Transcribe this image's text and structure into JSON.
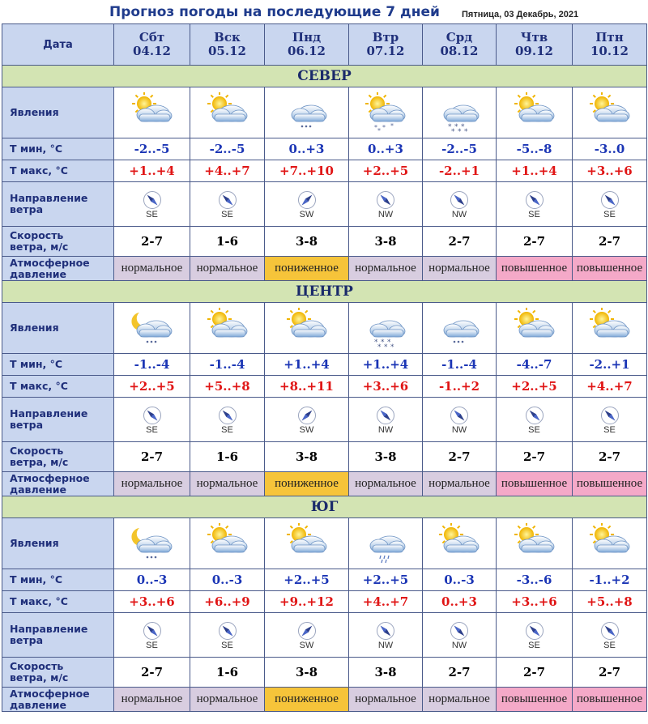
{
  "header": {
    "title": "Прогноз погоды на последующие 7 дней",
    "date": "Пятница, 03 Декабрь, 2021"
  },
  "labels": {
    "date": "Дата",
    "phenomena": "Явления",
    "tmin": "Т мин, °С",
    "tmax": "Т макс, °С",
    "wind_dir_1": "Направление",
    "wind_dir_2": "ветра",
    "wind_speed_1": "Скорость",
    "wind_speed_2": "ветра, м/с",
    "pressure_1": "Атмосферное",
    "pressure_2": "давление"
  },
  "days": [
    {
      "name": "Сбт",
      "date": "04.12"
    },
    {
      "name": "Вск",
      "date": "05.12"
    },
    {
      "name": "Пнд",
      "date": "06.12"
    },
    {
      "name": "Втр",
      "date": "07.12"
    },
    {
      "name": "Срд",
      "date": "08.12"
    },
    {
      "name": "Чтв",
      "date": "09.12"
    },
    {
      "name": "Птн",
      "date": "10.12"
    }
  ],
  "colors": {
    "normal": "#d8cde0",
    "low": "#f6c43a",
    "high": "#f4a9c8",
    "header": "#c9d6ef",
    "region": "#d3e4b3"
  },
  "regions": [
    {
      "name": "СЕВЕР",
      "icons": [
        "partly-cloudy-icon",
        "partly-cloudy-icon",
        "cloud-snow-light-icon",
        "partly-cloudy-snow-icon",
        "cloud-heavy-snow-icon",
        "partly-cloudy-icon",
        "partly-cloudy-icon"
      ],
      "tmin": [
        "-2..-5",
        "-2..-5",
        "0..+3",
        "0..+3",
        "-2..-5",
        "-5..-8",
        "-3..0"
      ],
      "tmax": [
        "+1..+4",
        "+4..+7",
        "+7..+10",
        "+2..+5",
        "-2..+1",
        "+1..+4",
        "+3..+6"
      ],
      "wind_dir": [
        "SE",
        "SE",
        "SW",
        "NW",
        "NW",
        "SE",
        "SE"
      ],
      "wind_speed": [
        "2-7",
        "1-6",
        "3-8",
        "3-8",
        "2-7",
        "2-7",
        "2-7"
      ],
      "pressure": [
        "нормальное",
        "нормальное",
        "пониженное",
        "нормальное",
        "нормальное",
        "повышенное",
        "повышенное"
      ],
      "pressure_level": [
        "normal",
        "normal",
        "low",
        "normal",
        "normal",
        "high",
        "high"
      ]
    },
    {
      "name": "ЦЕНТР",
      "icons": [
        "moon-cloud-snow-icon",
        "partly-cloudy-icon",
        "partly-cloudy-icon",
        "cloud-heavy-snow-icon",
        "cloud-snow-light-icon",
        "partly-cloudy-icon",
        "partly-cloudy-icon"
      ],
      "tmin": [
        "-1..-4",
        "-1..-4",
        "+1..+4",
        "+1..+4",
        "-1..-4",
        "-4..-7",
        "-2..+1"
      ],
      "tmax": [
        "+2..+5",
        "+5..+8",
        "+8..+11",
        "+3..+6",
        "-1..+2",
        "+2..+5",
        "+4..+7"
      ],
      "wind_dir": [
        "SE",
        "SE",
        "SW",
        "NW",
        "NW",
        "SE",
        "SE"
      ],
      "wind_speed": [
        "2-7",
        "1-6",
        "3-8",
        "3-8",
        "2-7",
        "2-7",
        "2-7"
      ],
      "pressure": [
        "нормальное",
        "нормальное",
        "пониженное",
        "нормальное",
        "нормальное",
        "повышенное",
        "повышенное"
      ],
      "pressure_level": [
        "normal",
        "normal",
        "low",
        "normal",
        "normal",
        "high",
        "high"
      ]
    },
    {
      "name": "ЮГ",
      "icons": [
        "moon-cloud-snow-icon",
        "partly-cloudy-icon",
        "partly-cloudy-icon",
        "cloud-rain-icon",
        "partly-cloudy-icon",
        "partly-cloudy-icon",
        "partly-cloudy-icon"
      ],
      "tmin": [
        "0..-3",
        "0..-3",
        "+2..+5",
        "+2..+5",
        "0..-3",
        "-3..-6",
        "-1..+2"
      ],
      "tmax": [
        "+3..+6",
        "+6..+9",
        "+9..+12",
        "+4..+7",
        "0..+3",
        "+3..+6",
        "+5..+8"
      ],
      "wind_dir": [
        "SE",
        "SE",
        "SW",
        "NW",
        "NW",
        "SE",
        "SE"
      ],
      "wind_speed": [
        "2-7",
        "1-6",
        "3-8",
        "3-8",
        "2-7",
        "2-7",
        "2-7"
      ],
      "pressure": [
        "нормальное",
        "нормальное",
        "пониженное",
        "нормальное",
        "нормальное",
        "повышенное",
        "повышенное"
      ],
      "pressure_level": [
        "normal",
        "normal",
        "low",
        "normal",
        "normal",
        "high",
        "high"
      ]
    }
  ]
}
